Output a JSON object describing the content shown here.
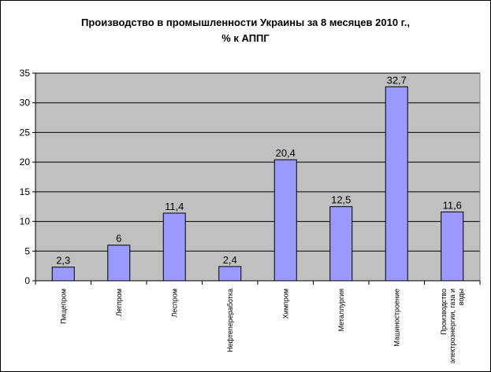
{
  "chart_data": {
    "type": "bar",
    "title": "Производство в промышленности Украины за 8 месяцев 2010 г.,",
    "subtitle": "% к АППГ",
    "categories": [
      "Пищепром",
      "Легпром",
      "Леспром",
      "Нефтепереработка",
      "Химпром",
      "Металлургия",
      "Машиностроение",
      "Производство электроэнергии, газа и воды"
    ],
    "category_label_lines": [
      [
        "Пищепром"
      ],
      [
        "Легпром"
      ],
      [
        "Леспром"
      ],
      [
        "Нефтепереработка"
      ],
      [
        "Химпром"
      ],
      [
        "Металлургия"
      ],
      [
        "Машиностроение"
      ],
      [
        "Производство",
        "электроэнергии, газа и",
        "воды"
      ]
    ],
    "values": [
      2.3,
      6,
      11.4,
      2.4,
      20.4,
      12.5,
      32.7,
      11.6
    ],
    "data_labels": [
      "2,3",
      "6",
      "11,4",
      "2,4",
      "20,4",
      "12,5",
      "32,7",
      "11,6"
    ],
    "ylim": [
      0,
      35
    ],
    "yticks": [
      0,
      5,
      10,
      15,
      20,
      25,
      30,
      35
    ],
    "grid": true,
    "legend": "none",
    "colors": {
      "bar": "#9999ff",
      "bar_border": "#000000",
      "plot_bg": "#c0c0c0",
      "gridline": "#000000"
    }
  }
}
